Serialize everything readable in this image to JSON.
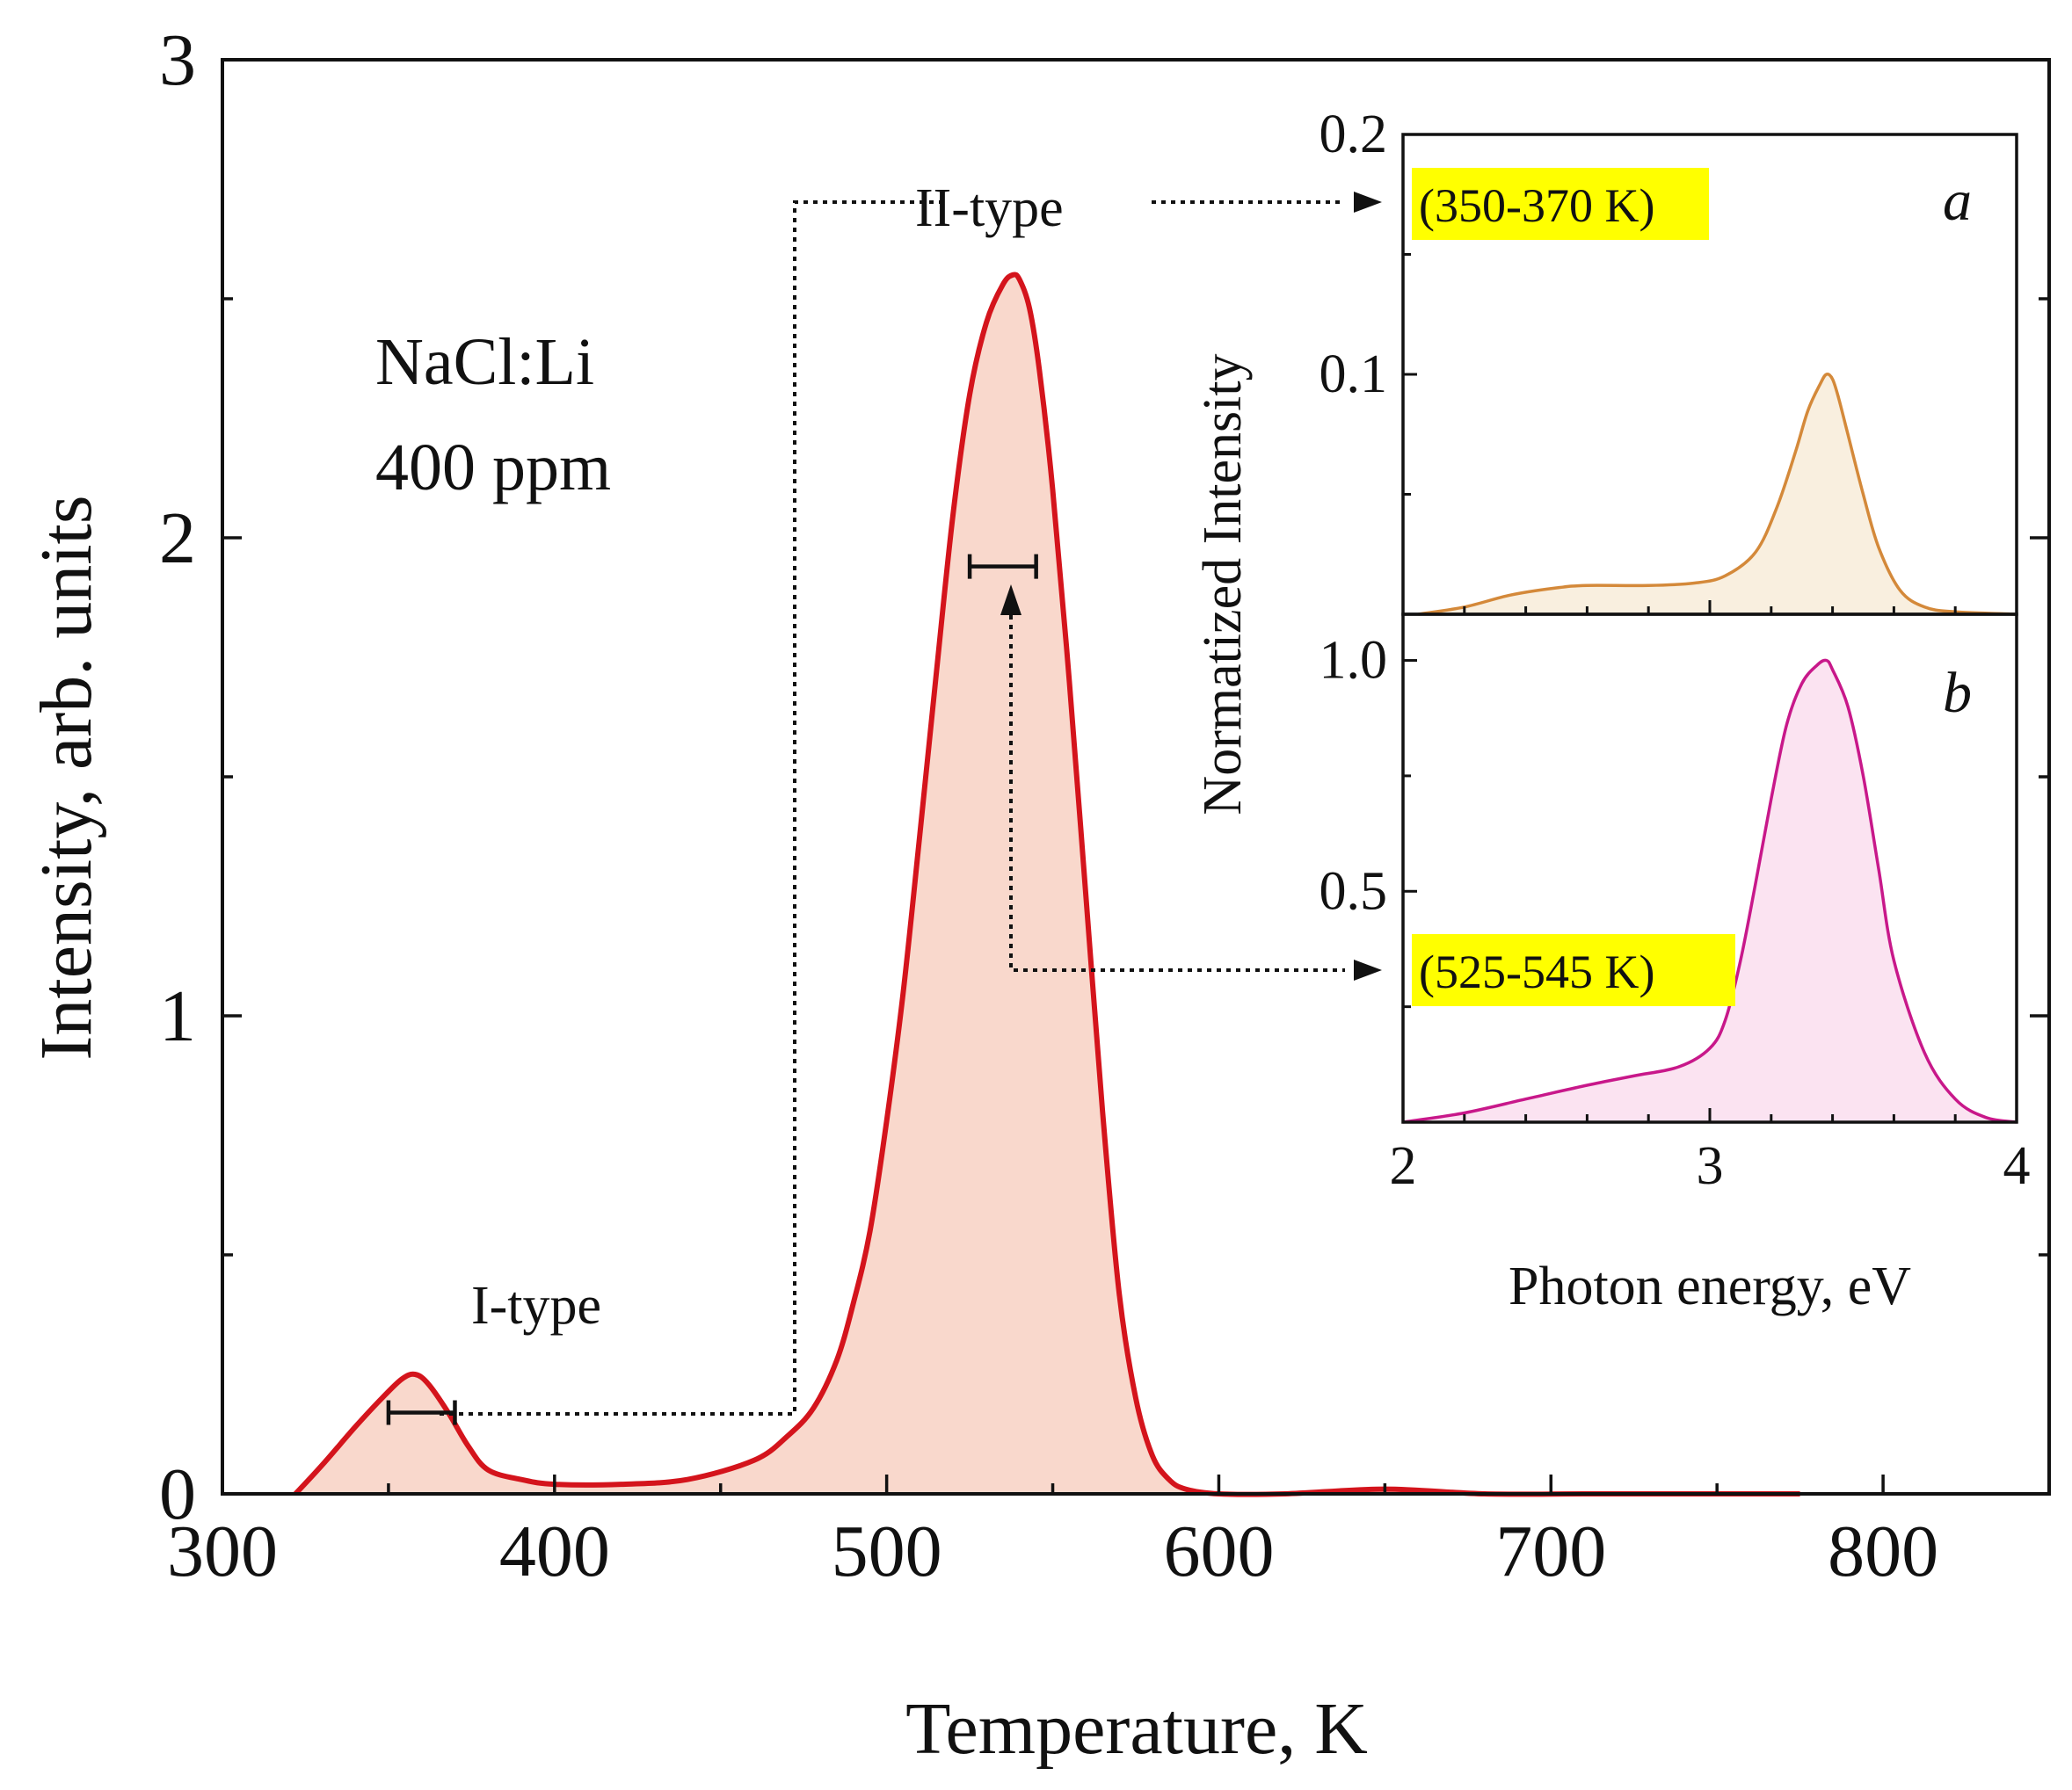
{
  "chart_data": [
    {
      "id": "main",
      "type": "area",
      "xlabel": "Temperature, K",
      "ylabel": "Intensity, arb. units",
      "xlim": [
        300,
        850
      ],
      "ylim": [
        0,
        3
      ],
      "xticks": [
        300,
        400,
        500,
        600,
        700,
        800
      ],
      "yticks": [
        0,
        1,
        2,
        3
      ],
      "grid": false,
      "series": [
        {
          "name": "NaCl:Li 400 ppm",
          "color": "#d4141c",
          "fill": "#f9d8cc",
          "x": [
            322,
            330,
            340,
            348,
            354,
            358,
            362,
            368,
            374,
            380,
            390,
            400,
            420,
            440,
            460,
            470,
            478,
            485,
            490,
            495,
            500,
            505,
            510,
            515,
            520,
            525,
            530,
            535,
            538,
            540,
            543,
            546,
            550,
            555,
            560,
            565,
            570,
            575,
            580,
            585,
            590,
            600,
            620,
            650,
            680,
            710,
            740,
            775
          ],
          "y": [
            0.0,
            0.06,
            0.14,
            0.2,
            0.24,
            0.25,
            0.23,
            0.17,
            0.1,
            0.05,
            0.03,
            0.02,
            0.02,
            0.03,
            0.07,
            0.12,
            0.18,
            0.28,
            0.4,
            0.55,
            0.78,
            1.05,
            1.38,
            1.72,
            2.05,
            2.3,
            2.45,
            2.53,
            2.55,
            2.54,
            2.48,
            2.35,
            2.1,
            1.7,
            1.25,
            0.8,
            0.42,
            0.2,
            0.08,
            0.03,
            0.01,
            0.0,
            0.0,
            0.01,
            0.0,
            0.0,
            0.0,
            0.0
          ]
        }
      ],
      "annotations": {
        "sample_line1": "NaCl:Li",
        "sample_line2": "400 ppm",
        "peak1_label": "I-type",
        "peak2_label": "II-type",
        "peak1_window": [
          350,
          370
        ],
        "peak2_window": [
          525,
          545
        ]
      }
    },
    {
      "id": "inset-a",
      "type": "area",
      "panel": "a",
      "xlim": [
        2,
        4
      ],
      "ylim": [
        0,
        0.2
      ],
      "yticks": [
        0.1,
        0.2
      ],
      "range_tag": "(350-370 K)",
      "series": [
        {
          "name": "350-370 K spectrum",
          "color": "#d4893a",
          "fill": "#f9efdf",
          "x": [
            2.05,
            2.2,
            2.35,
            2.5,
            2.6,
            2.8,
            2.95,
            3.05,
            3.15,
            3.22,
            3.28,
            3.32,
            3.36,
            3.38,
            3.4,
            3.42,
            3.45,
            3.5,
            3.55,
            3.62,
            3.7,
            3.8,
            4.0
          ],
          "y": [
            0.0,
            0.003,
            0.008,
            0.011,
            0.012,
            0.012,
            0.013,
            0.016,
            0.026,
            0.045,
            0.068,
            0.085,
            0.096,
            0.1,
            0.098,
            0.09,
            0.075,
            0.05,
            0.028,
            0.01,
            0.003,
            0.001,
            0.0
          ]
        }
      ]
    },
    {
      "id": "inset-b",
      "type": "area",
      "panel": "b",
      "xlim": [
        2,
        4
      ],
      "ylim": [
        0,
        1.1
      ],
      "yticks": [
        0.5,
        1.0
      ],
      "xticks": [
        2,
        3,
        4
      ],
      "range_tag": "(525-545 K)",
      "series": [
        {
          "name": "525-545 K spectrum",
          "color": "#c8188a",
          "fill": "#fbe3f1",
          "x": [
            2.0,
            2.2,
            2.4,
            2.6,
            2.75,
            2.9,
            3.0,
            3.05,
            3.1,
            3.15,
            3.2,
            3.25,
            3.3,
            3.35,
            3.38,
            3.4,
            3.45,
            3.5,
            3.55,
            3.6,
            3.7,
            3.8,
            3.9,
            4.0
          ],
          "y": [
            0.0,
            0.02,
            0.05,
            0.08,
            0.1,
            0.12,
            0.16,
            0.22,
            0.35,
            0.52,
            0.7,
            0.86,
            0.95,
            0.99,
            1.0,
            0.98,
            0.9,
            0.75,
            0.55,
            0.35,
            0.15,
            0.05,
            0.01,
            0.0
          ]
        }
      ]
    }
  ],
  "inset": {
    "ylabel": "Normatized Intensity",
    "xlabel": "Photon energy, eV"
  },
  "colors": {
    "highlight": "#ffff00",
    "axis": "#111111",
    "connector": "#111111"
  }
}
